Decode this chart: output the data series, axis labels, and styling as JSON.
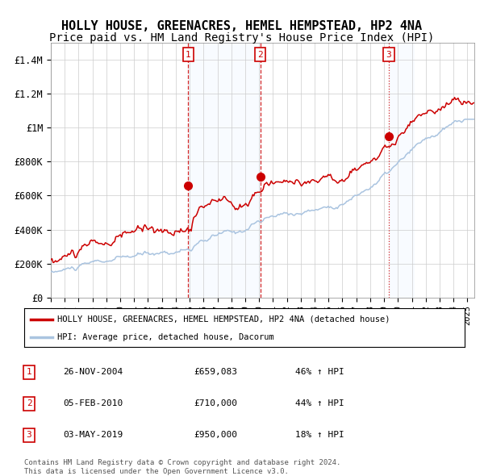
{
  "title": "HOLLY HOUSE, GREENACRES, HEMEL HEMPSTEAD, HP2 4NA",
  "subtitle": "Price paid vs. HM Land Registry's House Price Index (HPI)",
  "title_fontsize": 11,
  "subtitle_fontsize": 10,
  "background_color": "#ffffff",
  "plot_bg_color": "#ffffff",
  "grid_color": "#cccccc",
  "hpi_line_color": "#aac4e0",
  "price_line_color": "#cc0000",
  "shade_color": "#ddeeff",
  "ylim": [
    0,
    1500000
  ],
  "yticks": [
    0,
    200000,
    400000,
    600000,
    800000,
    1000000,
    1200000,
    1400000
  ],
  "ytick_labels": [
    "£0",
    "£200K",
    "£400K",
    "£600K",
    "£800K",
    "£1M",
    "£1.2M",
    "£1.4M"
  ],
  "sale1": {
    "date_num": 2004.9,
    "price": 659083,
    "label": "1"
  },
  "sale2": {
    "date_num": 2010.09,
    "price": 710000,
    "label": "2"
  },
  "sale3": {
    "date_num": 2019.34,
    "price": 950000,
    "label": "3"
  },
  "legend_price_label": "HOLLY HOUSE, GREENACRES, HEMEL HEMPSTEAD, HP2 4NA (detached house)",
  "legend_hpi_label": "HPI: Average price, detached house, Dacorum",
  "table_rows": [
    {
      "num": "1",
      "date": "26-NOV-2004",
      "price": "£659,083",
      "pct": "46% ↑ HPI"
    },
    {
      "num": "2",
      "date": "05-FEB-2010",
      "price": "£710,000",
      "pct": "44% ↑ HPI"
    },
    {
      "num": "3",
      "date": "03-MAY-2019",
      "price": "£950,000",
      "pct": "18% ↑ HPI"
    }
  ],
  "footnote1": "Contains HM Land Registry data © Crown copyright and database right 2024.",
  "footnote2": "This data is licensed under the Open Government Licence v3.0."
}
